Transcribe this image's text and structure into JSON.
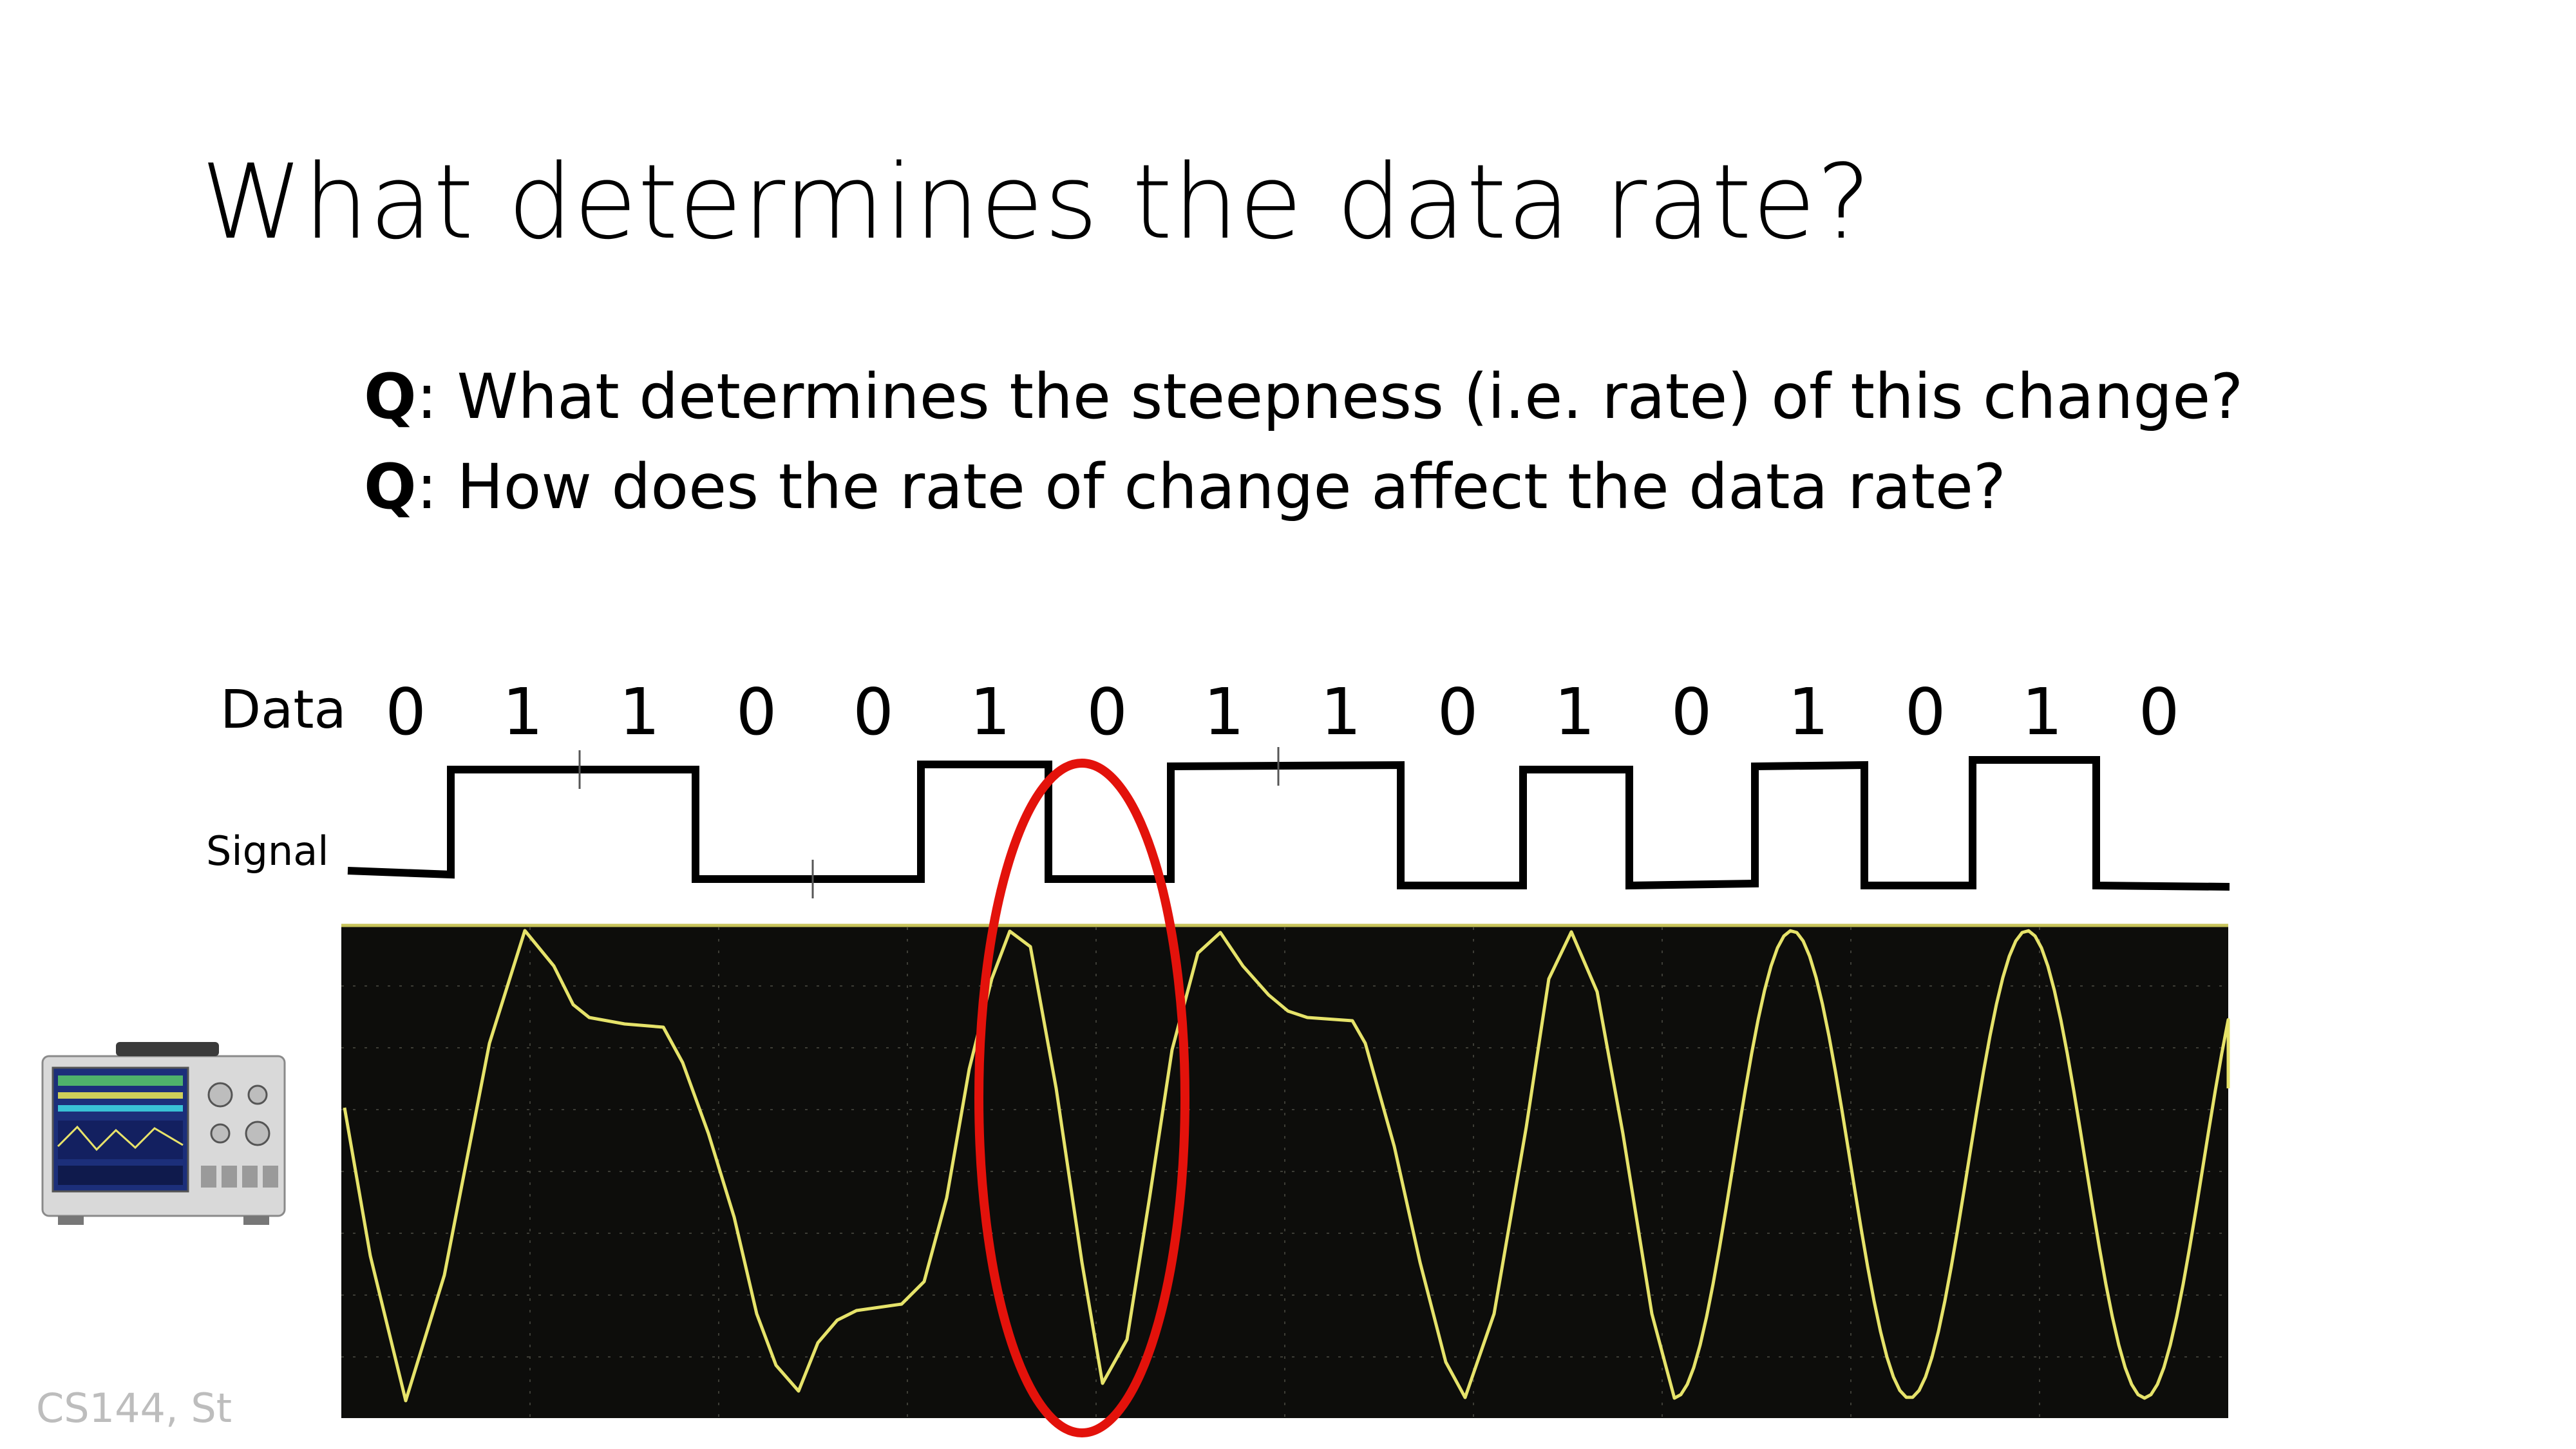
{
  "slide": {
    "title": "What determines the data rate?",
    "questions": [
      {
        "prefix": "Q",
        "text": ": What determines the steepness (i.e. rate) of this change?"
      },
      {
        "prefix": "Q",
        "text": ": How does the rate of change affect the data rate?"
      }
    ],
    "data_label": "Data",
    "signal_label": "Signal",
    "bits": [
      "0",
      "1",
      "1",
      "0",
      "0",
      "1",
      "0",
      "1",
      "1",
      "0",
      "1",
      "0",
      "1",
      "0",
      "1",
      "0"
    ],
    "footer": "CS144, St",
    "highlight_color": "#e3120b",
    "trace_color": "#e6e36a",
    "scope_background": "#0d0d0b"
  }
}
